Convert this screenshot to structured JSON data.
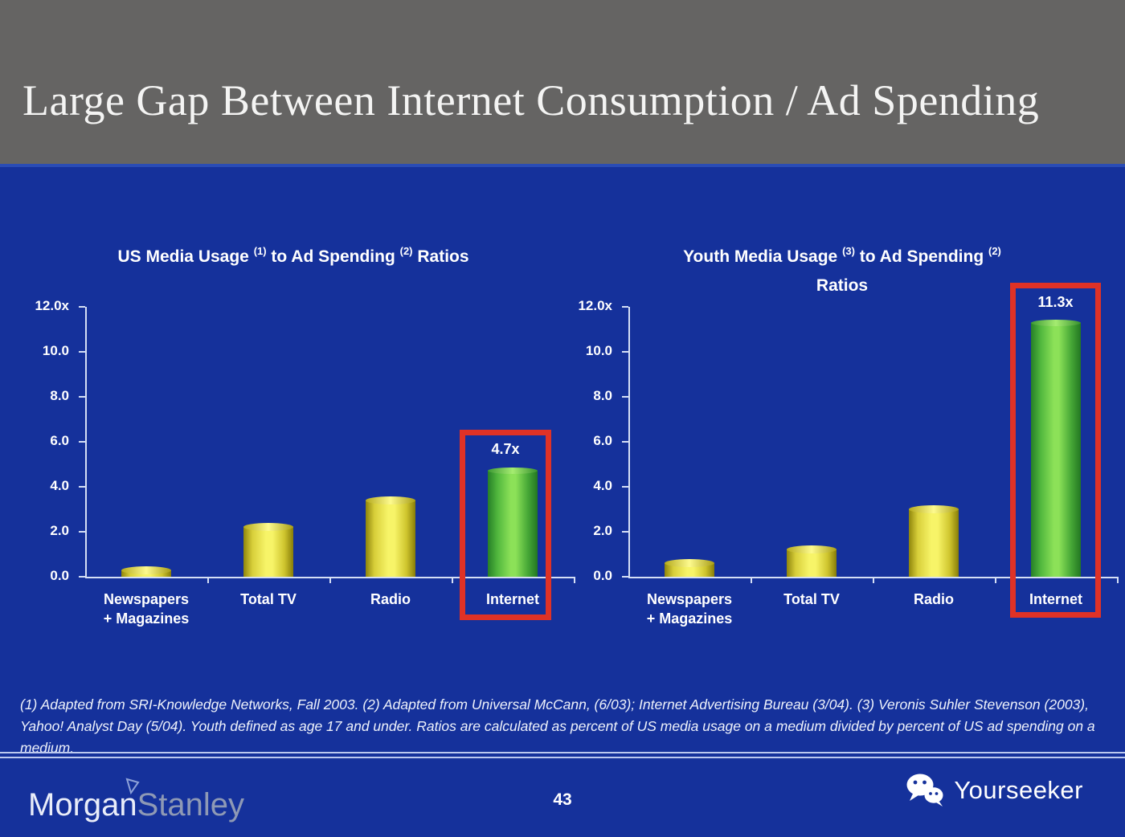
{
  "header": {
    "title": "Large Gap Between Internet Consumption / Ad Spending"
  },
  "chart_data": [
    {
      "type": "bar",
      "title": "US Media Usage (1) to Ad Spending (2) Ratios",
      "title_segments": [
        {
          "t": "US Media Usage "
        },
        {
          "sup": "(1)"
        },
        {
          "t": " to Ad Spending "
        },
        {
          "sup": "(2)"
        },
        {
          "t": " Ratios"
        }
      ],
      "categories": [
        "Newspapers + Magazines",
        "Total TV",
        "Radio",
        "Internet"
      ],
      "category_lines": [
        [
          "Newspapers",
          "+ Magazines"
        ],
        [
          "Total TV"
        ],
        [
          "Radio"
        ],
        [
          "Internet"
        ]
      ],
      "values": [
        0.3,
        2.2,
        3.4,
        4.7
      ],
      "bar_colors": [
        "yellow",
        "yellow",
        "yellow",
        "green"
      ],
      "ytick_labels": [
        "12.0x",
        "10.0",
        "8.0",
        "6.0",
        "4.0",
        "2.0",
        "0.0"
      ],
      "ylim": [
        0,
        12
      ],
      "grid": false,
      "highlight": {
        "category": "Internet",
        "index": 3,
        "label": "4.7x",
        "box_color": "#df3226"
      }
    },
    {
      "type": "bar",
      "title": "Youth Media Usage (3) to Ad Spending (2) Ratios",
      "title_segments": [
        {
          "t": "Youth Media Usage "
        },
        {
          "sup": "(3)"
        },
        {
          "t": " to Ad Spending "
        },
        {
          "sup": "(2)"
        },
        {
          "br": true
        },
        {
          "t": "Ratios"
        }
      ],
      "categories": [
        "Newspapers + Magazines",
        "Total TV",
        "Radio",
        "Internet"
      ],
      "category_lines": [
        [
          "Newspapers",
          "+ Magazines"
        ],
        [
          "Total TV"
        ],
        [
          "Radio"
        ],
        [
          "Internet"
        ]
      ],
      "values": [
        0.6,
        1.2,
        3.0,
        11.3
      ],
      "bar_colors": [
        "yellow",
        "yellow",
        "yellow",
        "green"
      ],
      "ytick_labels": [
        "12.0x",
        "10.0",
        "8.0",
        "6.0",
        "4.0",
        "2.0",
        "0.0"
      ],
      "ylim": [
        0,
        12
      ],
      "grid": false,
      "highlight": {
        "category": "Internet",
        "index": 3,
        "label": "11.3x",
        "box_color": "#df3226"
      }
    }
  ],
  "footnote": {
    "text": "(1) Adapted from SRI-Knowledge Networks, Fall 2003.  (2) Adapted from Universal McCann, (6/03); Internet Advertising Bureau (3/04). (3) Veronis Suhler Stevenson (2003), Yahoo! Analyst Day (5/04).  Youth defined as age 17 and under.  Ratios are calculated as percent of US media usage on a medium divided by percent of US ad spending on a medium."
  },
  "footer": {
    "logo_morgan": "Morgan",
    "logo_stanley": "Stanley",
    "page_number": "43",
    "watermark": "Yourseeker",
    "watermark_icon": "wechat-icon"
  },
  "colors": {
    "header_gray": "#656463",
    "background_blue": "#15319b",
    "bar_yellow": "#f7f468",
    "bar_green": "#8ce158",
    "highlight_red": "#df3226",
    "axis": "#d5dff5",
    "text": "#ffffff"
  }
}
